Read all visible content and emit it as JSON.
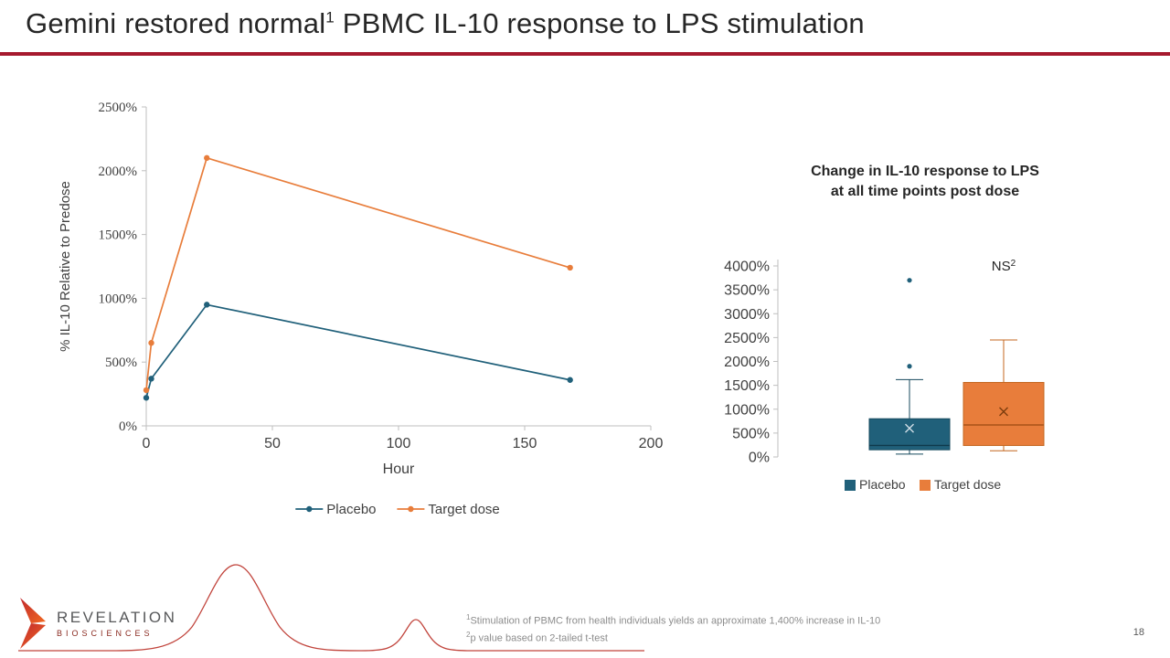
{
  "slide": {
    "title_pre": "Gemini restored normal",
    "title_sup": "1",
    "title_post": " PBMC IL-10 response to LPS stimulation",
    "page_number": "18"
  },
  "logo": {
    "brand": "REVELATION",
    "sub_brand": "BIOSCIENCES"
  },
  "footnotes": {
    "note1_sup": "1",
    "note1_text": "Stimulation of PBMC from health individuals yields an approximate 1,400% increase in IL-10",
    "note2_sup": "2",
    "note2_text": "p value based on 2-tailed t-test"
  },
  "colors": {
    "accent_bar": "#A6192E",
    "placebo": "#20607A",
    "target_dose": "#E87D3B",
    "axis": "#BFBFBF",
    "tick_text": "#404040",
    "wave": "#C1443C",
    "logo_red": "#C0272D",
    "logo_orange": "#F26A21"
  },
  "chart_data": [
    {
      "type": "line",
      "title": "",
      "xlabel": "Hour",
      "ylabel": "% IL-10 Relative to Predose",
      "xlim": [
        0,
        200
      ],
      "ylim": [
        0,
        2500
      ],
      "xticks": [
        0,
        50,
        100,
        150,
        200
      ],
      "yticks": [
        0,
        500,
        1000,
        1500,
        2000,
        2500
      ],
      "ytick_suffix": "%",
      "grid": false,
      "legend_position": "bottom",
      "series": [
        {
          "name": "Placebo",
          "color": "#20607A",
          "x": [
            0,
            2,
            24,
            168
          ],
          "y": [
            220,
            370,
            950,
            360
          ]
        },
        {
          "name": "Target dose",
          "color": "#E87D3B",
          "x": [
            0,
            2,
            24,
            168
          ],
          "y": [
            280,
            650,
            2100,
            1240
          ]
        }
      ]
    },
    {
      "type": "box",
      "title_lines": [
        "Change in IL-10 response to LPS",
        "at all time points post dose"
      ],
      "annotation": {
        "text": "NS",
        "sup": "2"
      },
      "ylim": [
        0,
        4000
      ],
      "yticks": [
        0,
        500,
        1000,
        1500,
        2000,
        2500,
        3000,
        3500,
        4000
      ],
      "ytick_suffix": "%",
      "grid": false,
      "legend_position": "bottom",
      "boxes": [
        {
          "name": "Placebo",
          "color": "#20607A",
          "whisker_low": 60,
          "q1": 150,
          "median": 240,
          "q3": 800,
          "whisker_high": 1620,
          "mean": 600,
          "outliers": [
            1900,
            3700
          ]
        },
        {
          "name": "Target dose",
          "color": "#E87D3B",
          "whisker_low": 130,
          "q1": 240,
          "median": 670,
          "q3": 1560,
          "whisker_high": 2450,
          "mean": 950,
          "outliers": []
        }
      ]
    }
  ]
}
